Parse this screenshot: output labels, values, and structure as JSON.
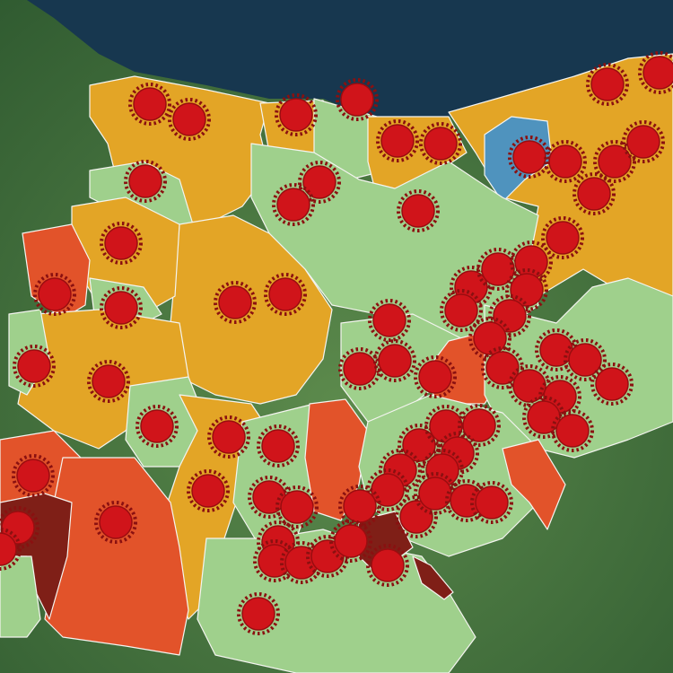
{
  "map": {
    "colors": {
      "sea": "#17374f",
      "land_background": "#4f7d45",
      "level_low": "#9fd08c",
      "level_medium": "#e3a526",
      "level_high": "#e2532a",
      "level_very_high": "#7f1f17",
      "level_special": "#4f93be",
      "marker_fill": "#d0141a",
      "marker_ring": "#8a1010"
    },
    "marker_icon": "virus-icon"
  }
}
